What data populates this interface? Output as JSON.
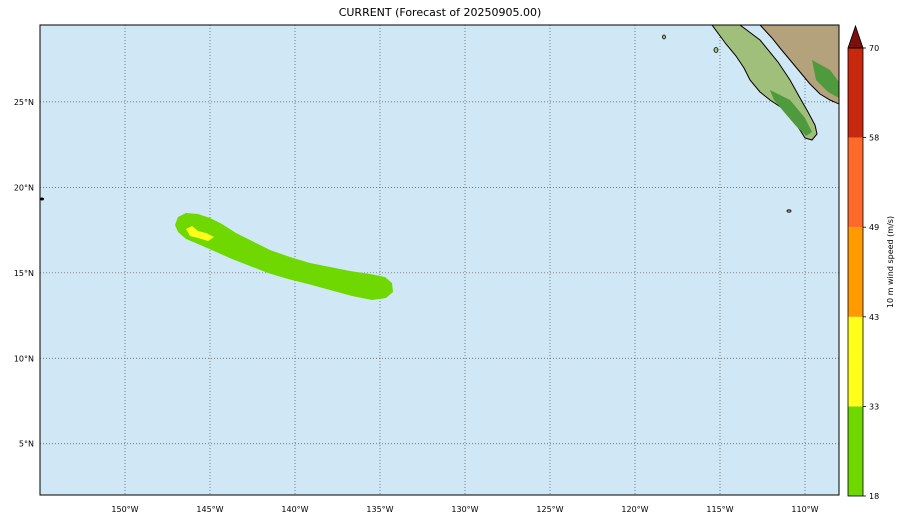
{
  "title": "CURRENT (Forecast of 20250905.00)",
  "map": {
    "lon_range": [
      -155,
      -108
    ],
    "lat_range": [
      2,
      29.5
    ],
    "lon_ticks": [
      {
        "value": -150,
        "label": "150°W"
      },
      {
        "value": -145,
        "label": "145°W"
      },
      {
        "value": -140,
        "label": "140°W"
      },
      {
        "value": -135,
        "label": "135°W"
      },
      {
        "value": -130,
        "label": "130°W"
      },
      {
        "value": -125,
        "label": "125°W"
      },
      {
        "value": -120,
        "label": "120°W"
      },
      {
        "value": -115,
        "label": "115°W"
      },
      {
        "value": -110,
        "label": "110°W"
      }
    ],
    "lat_ticks": [
      {
        "value": 25,
        "label": "25°N"
      },
      {
        "value": 20,
        "label": "20°N"
      },
      {
        "value": 15,
        "label": "15°N"
      },
      {
        "value": 10,
        "label": "10°N"
      },
      {
        "value": 5,
        "label": "5°N"
      }
    ],
    "ocean_color": "#d0e7f5",
    "grid": "dotted"
  },
  "colorbar": {
    "label": "10 m wind speed (m/s)",
    "levels": [
      18,
      33,
      43,
      49,
      58,
      70
    ],
    "colors": [
      "#6fd800",
      "#ffff1a",
      "#ff9a00",
      "#ff6a2b",
      "#c8280e"
    ],
    "extend_color": "#7a0f0f"
  },
  "chart_data": {
    "type": "map",
    "title": "CURRENT (Forecast of 20250905.00)",
    "variable": "10 m wind speed (m/s)",
    "swath": {
      "color_band": "18-33 m/s",
      "track_lon_lat": [
        [
          -146.5,
          17.8
        ],
        [
          -144,
          16.8
        ],
        [
          -141,
          15.6
        ],
        [
          -138,
          14.8
        ],
        [
          -135,
          14.1
        ]
      ]
    },
    "small_patch": {
      "color_band": "33-43 m/s",
      "lon_lat": [
        -145.5,
        17.5
      ]
    }
  }
}
